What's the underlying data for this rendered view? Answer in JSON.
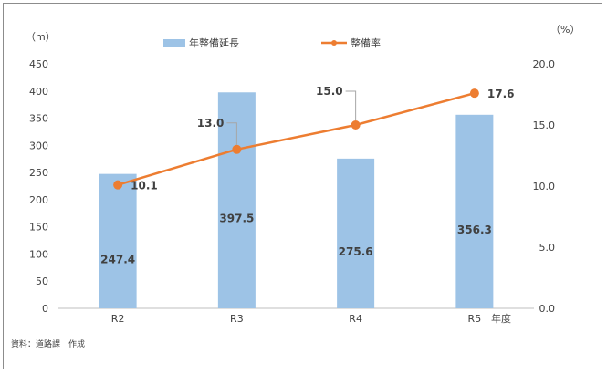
{
  "chart_data": {
    "type": "bar+line",
    "categories": [
      "R2",
      "R3",
      "R4",
      "R5"
    ],
    "series": [
      {
        "name": "年整備延長",
        "type": "bar",
        "axis": "left",
        "values": [
          247.4,
          397.5,
          275.6,
          356.3
        ],
        "labels": [
          "247.4",
          "397.5",
          "275.6",
          "356.3"
        ],
        "color": "#9dc3e6"
      },
      {
        "name": "整備率",
        "type": "line",
        "axis": "right",
        "values": [
          10.1,
          13.0,
          15.0,
          17.6
        ],
        "labels": [
          "10.1",
          "13.0",
          "15.0",
          "17.6"
        ],
        "color": "#ed7d31"
      }
    ],
    "y_left": {
      "unit": "（m）",
      "ylim": [
        0,
        450
      ],
      "ticks": [
        "0",
        "50",
        "100",
        "150",
        "200",
        "250",
        "300",
        "350",
        "400",
        "450"
      ]
    },
    "y_right": {
      "unit": "（%）",
      "ylim": [
        0,
        20
      ],
      "ticks": [
        "0.0",
        "5.0",
        "10.0",
        "15.0",
        "20.0"
      ]
    },
    "xlabel": "年度",
    "legend_position": "top-center",
    "grid": false,
    "source_note": "資料：道路課　作成"
  }
}
